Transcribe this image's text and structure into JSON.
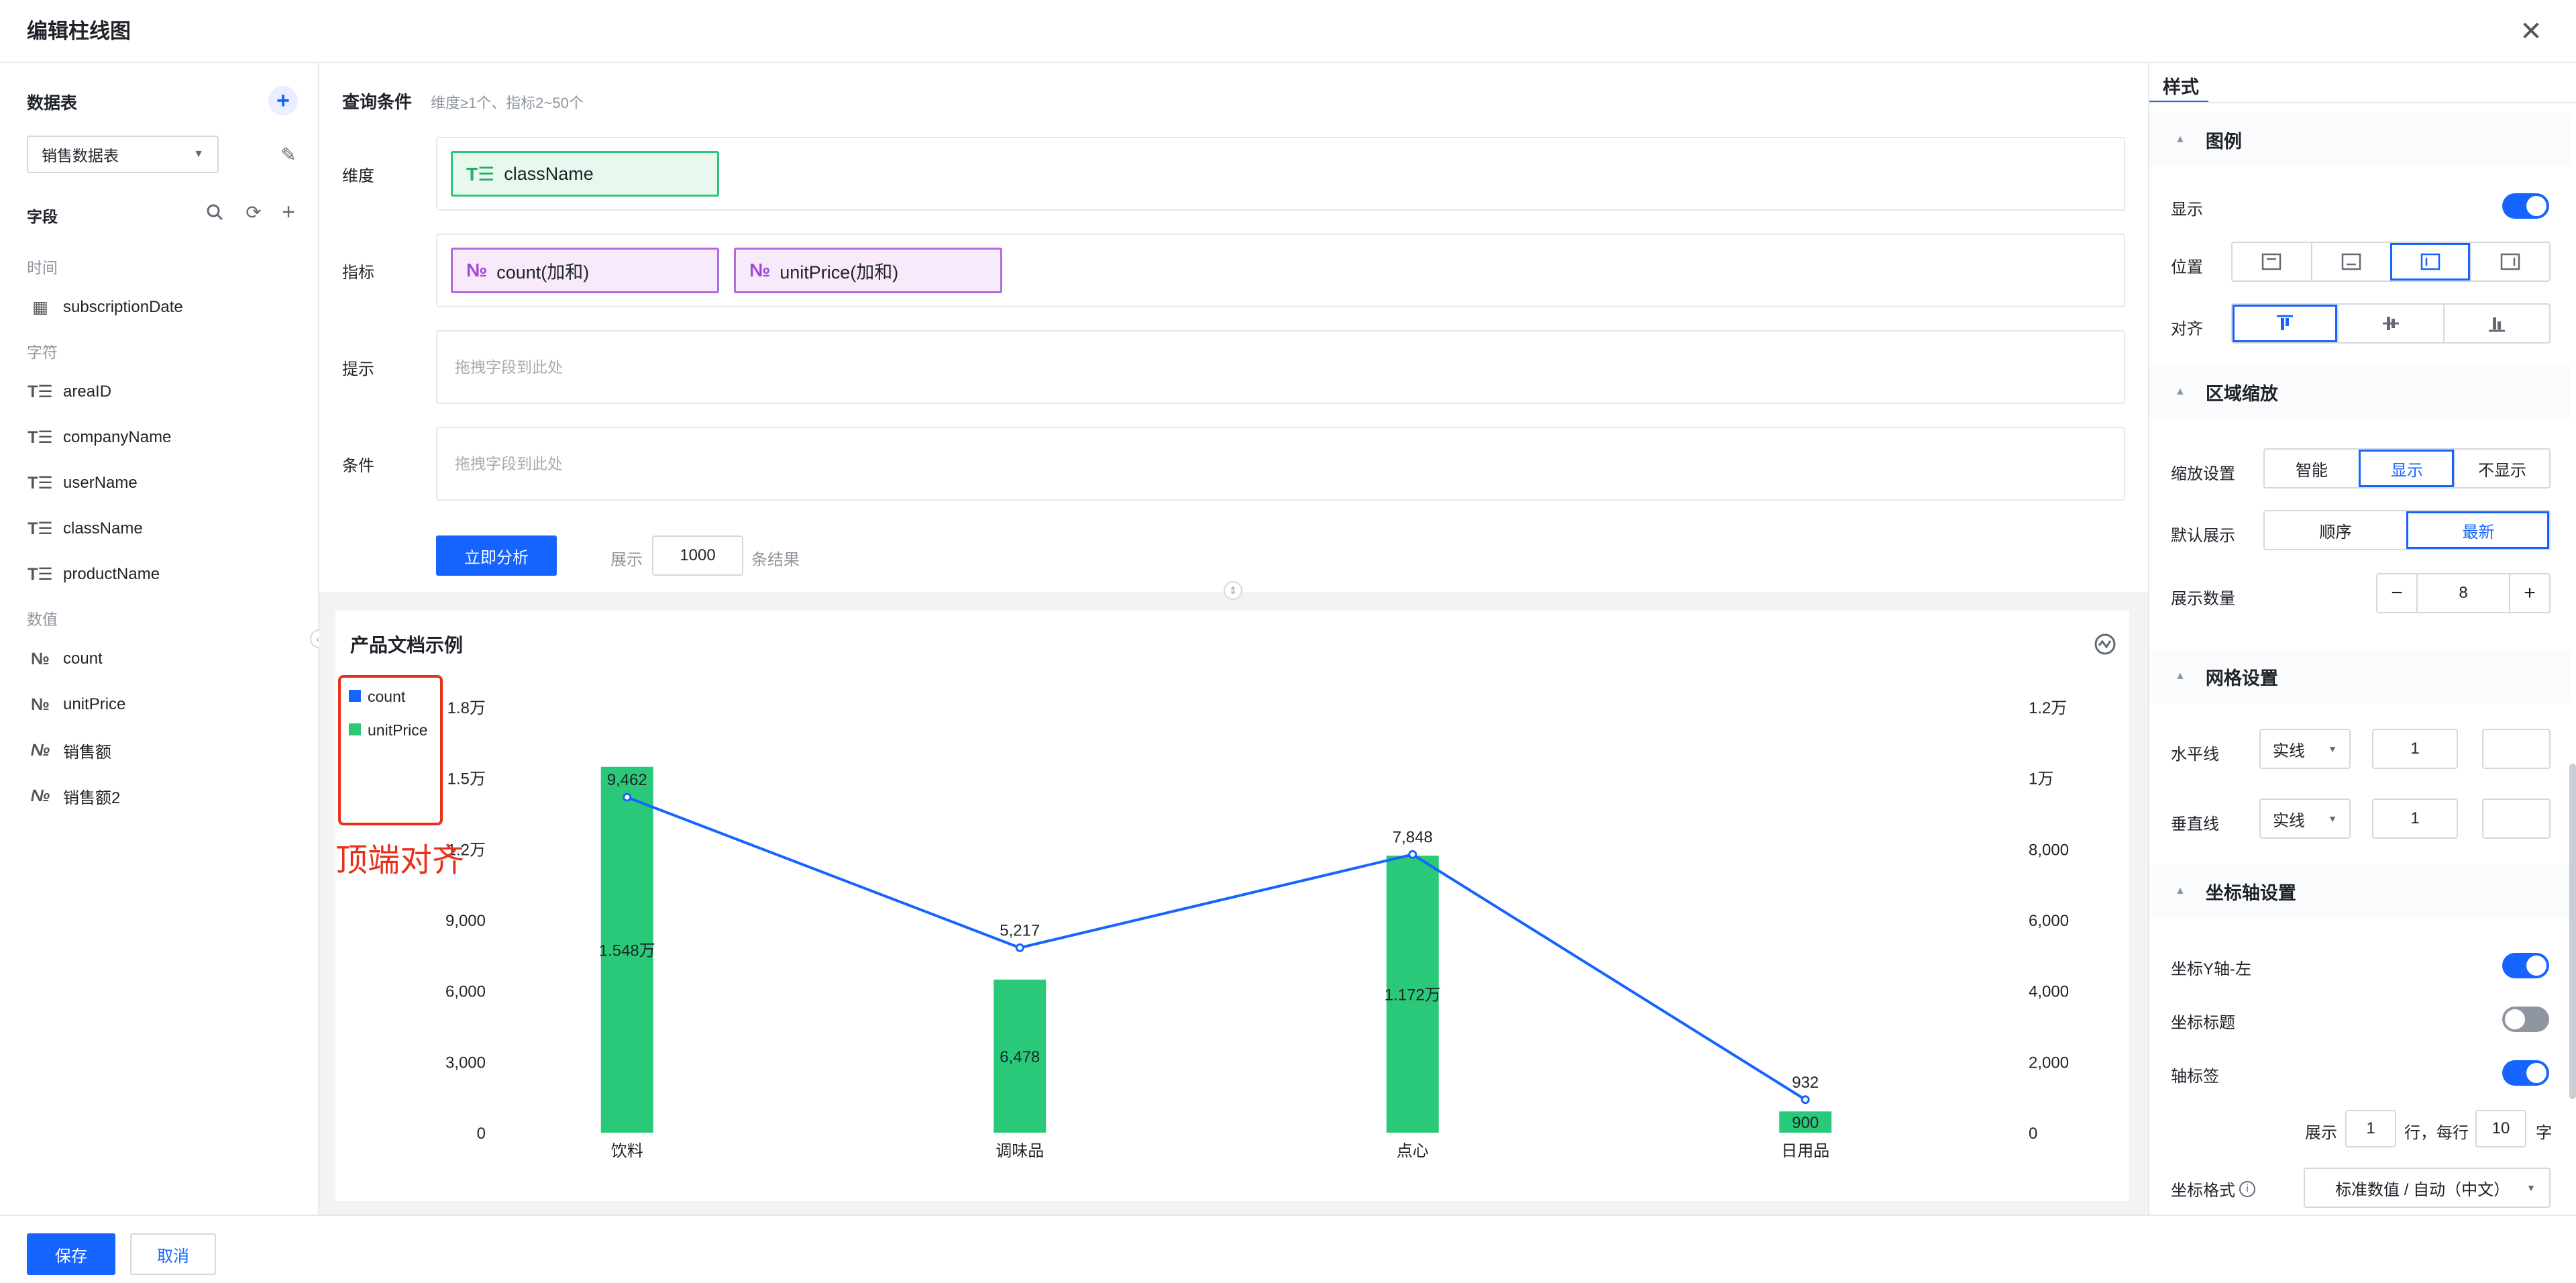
{
  "modal": {
    "title": "编辑柱线图"
  },
  "left": {
    "datatable_title": "数据表",
    "datatable_selected": "销售数据表",
    "fields_title": "字段",
    "groups": [
      {
        "label": "时间",
        "items": [
          {
            "name": "subscriptionDate",
            "icon": "calendar-icon"
          }
        ]
      },
      {
        "label": "字符",
        "items": [
          {
            "name": "areaID",
            "icon": "text-field-icon"
          },
          {
            "name": "companyName",
            "icon": "text-field-icon"
          },
          {
            "name": "userName",
            "icon": "text-field-icon"
          },
          {
            "name": "className",
            "icon": "text-field-icon"
          },
          {
            "name": "productName",
            "icon": "text-field-icon"
          }
        ]
      },
      {
        "label": "数值",
        "items": [
          {
            "name": "count",
            "icon": "number-field-icon"
          },
          {
            "name": "unitPrice",
            "icon": "number-field-icon"
          },
          {
            "name": "销售额",
            "icon": "calc-number-field-icon"
          },
          {
            "name": "销售额2",
            "icon": "calc-number-field-icon"
          }
        ]
      }
    ]
  },
  "query": {
    "title": "查询条件",
    "hint": "维度≥1个、指标2~50个",
    "dimension_label": "维度",
    "dimension_pill": "className",
    "metric_label": "指标",
    "metric_pills": [
      "count(加和)",
      "unitPrice(加和)"
    ],
    "tooltip_label": "提示",
    "tooltip_placeholder": "拖拽字段到此处",
    "filter_label": "条件",
    "filter_placeholder": "拖拽字段到此处",
    "analyze_button": "立即分析",
    "show_label": "展示",
    "limit_value": "1000",
    "result_suffix": "条结果"
  },
  "annotation": {
    "text": "顶端对齐",
    "color": "#e8311a"
  },
  "chart_data": {
    "type": "bar-line",
    "title": "产品文档示例",
    "categories": [
      "饮料",
      "调味品",
      "点心",
      "日用品"
    ],
    "legend": [
      "count",
      "unitPrice"
    ],
    "legend_position": "top-left",
    "series": [
      {
        "name": "unitPrice",
        "type": "bar",
        "axis": "left",
        "color": "#2ac97a",
        "values": [
          15480,
          6478,
          11720,
          900
        ],
        "labels": [
          "1.548万",
          "6,478",
          "1.172万",
          "900"
        ]
      },
      {
        "name": "count",
        "type": "line",
        "axis": "right",
        "color": "#1664ff",
        "values": [
          9462,
          5217,
          7848,
          932
        ],
        "labels": [
          "9,462",
          "5,217",
          "7,848",
          "932"
        ]
      }
    ],
    "y_left": {
      "ticks": [
        0,
        3000,
        6000,
        9000,
        12000,
        15000,
        18000
      ],
      "tick_labels": [
        "0",
        "3,000",
        "6,000",
        "9,000",
        "1.2万",
        "1.5万",
        "1.8万"
      ],
      "range": [
        0,
        18000
      ]
    },
    "y_right": {
      "ticks": [
        0,
        2000,
        4000,
        6000,
        8000,
        10000,
        12000
      ],
      "tick_labels": [
        "0",
        "2,000",
        "4,000",
        "6,000",
        "8,000",
        "1万",
        "1.2万"
      ],
      "range": [
        0,
        12000
      ]
    },
    "grid": false
  },
  "style": {
    "tab": "样式",
    "legend_section": "图例",
    "show_label": "显示",
    "show_on": true,
    "position_label": "位置",
    "position_options": [
      "top-icon",
      "bottom-icon",
      "left-icon",
      "right-icon"
    ],
    "position_selected": 2,
    "align_label": "对齐",
    "align_options": [
      "align-top-icon",
      "align-middle-icon",
      "align-bottom-icon"
    ],
    "align_selected": 0,
    "zoom_section": "区域缩放",
    "zoom_setting_label": "缩放设置",
    "zoom_options": [
      "智能",
      "显示",
      "不显示"
    ],
    "zoom_selected": 1,
    "default_show_label": "默认展示",
    "default_show_options": [
      "顺序",
      "最新"
    ],
    "default_show_selected": 1,
    "show_count_label": "展示数量",
    "show_count_value": "8",
    "grid_section": "网格设置",
    "hline_label": "水平线",
    "hline_type": "实线",
    "hline_width": "1",
    "vline_label": "垂直线",
    "vline_type": "实线",
    "vline_width": "1",
    "axis_section": "坐标轴设置",
    "y_left_label": "坐标Y轴-左",
    "y_left_on": true,
    "axis_title_label": "坐标标题",
    "axis_title_on": false,
    "axis_tick_label": "轴标签",
    "axis_tick_on": true,
    "show_prefix": "展示",
    "rows_value": "1",
    "per_row": "行，每行",
    "chars_value": "10",
    "chars_suffix": "字",
    "format_label": "坐标格式",
    "format_value": "标准数值 / 自动（中文）"
  },
  "footer": {
    "save": "保存",
    "cancel": "取消"
  }
}
